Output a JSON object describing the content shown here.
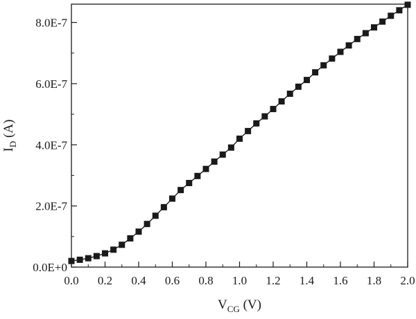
{
  "chart_data": {
    "type": "line",
    "title": "",
    "xlabel": {
      "main": "V",
      "sub": "CG",
      "unit": " (V)"
    },
    "ylabel": {
      "main": "I",
      "sub": "D",
      "unit": " (A)"
    },
    "xlim": [
      0.0,
      2.0
    ],
    "ylim": [
      0.0,
      8.6e-07
    ],
    "x_ticks": [
      0.0,
      0.2,
      0.4,
      0.6,
      0.8,
      1.0,
      1.2,
      1.4,
      1.6,
      1.8,
      2.0
    ],
    "x_tick_labels": [
      "0.0",
      "0.2",
      "0.4",
      "0.6",
      "0.8",
      "1.0",
      "1.2",
      "1.4",
      "1.6",
      "1.8",
      "2.0"
    ],
    "y_ticks": [
      0.0,
      2e-07,
      4e-07,
      6e-07,
      8e-07
    ],
    "y_tick_labels": [
      "0.0E+0",
      "2.0E-7",
      "4.0E-7",
      "6.0E-7",
      "8.0E-7"
    ],
    "grid": false,
    "series": [
      {
        "marker": "square",
        "color": "#1a1a1a",
        "x": [
          0.0,
          0.05,
          0.1,
          0.15,
          0.2,
          0.25,
          0.3,
          0.35,
          0.4,
          0.45,
          0.5,
          0.55,
          0.6,
          0.65,
          0.7,
          0.75,
          0.8,
          0.85,
          0.9,
          0.95,
          1.0,
          1.05,
          1.1,
          1.15,
          1.2,
          1.25,
          1.3,
          1.35,
          1.4,
          1.45,
          1.5,
          1.55,
          1.6,
          1.65,
          1.7,
          1.75,
          1.8,
          1.85,
          1.9,
          1.95,
          2.0
        ],
        "y": [
          2e-08,
          2.4e-08,
          2.9e-08,
          3.6e-08,
          4.5e-08,
          5.7e-08,
          7.3e-08,
          9.4e-08,
          1.16e-07,
          1.41e-07,
          1.68e-07,
          1.96e-07,
          2.24e-07,
          2.52e-07,
          2.75e-07,
          2.98e-07,
          3.21e-07,
          3.45e-07,
          3.68e-07,
          3.91e-07,
          4.2e-07,
          4.45e-07,
          4.7e-07,
          4.93e-07,
          5.17e-07,
          5.42e-07,
          5.67e-07,
          5.9e-07,
          6.12e-07,
          6.37e-07,
          6.6e-07,
          6.82e-07,
          7.04e-07,
          7.25e-07,
          7.46e-07,
          7.65e-07,
          7.84e-07,
          8.03e-07,
          8.22e-07,
          8.4e-07,
          8.58e-07
        ]
      }
    ]
  }
}
